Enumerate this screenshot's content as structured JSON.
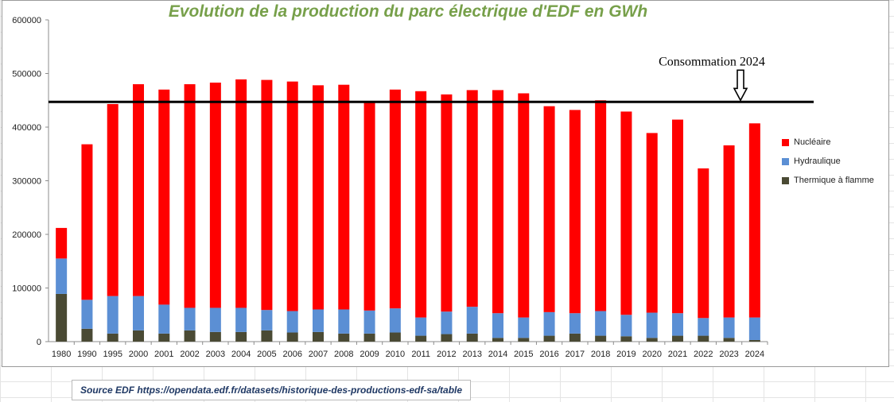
{
  "chart_data": {
    "type": "bar",
    "stacked": true,
    "title": "Evolution de la production du parc électrique d'EDF en GWh",
    "xlabel": "",
    "ylabel": "",
    "ylim": [
      0,
      600000
    ],
    "yticks": [
      "0",
      "100000",
      "200000",
      "300000",
      "400000",
      "500000",
      "600000"
    ],
    "ytick_values": [
      0,
      100000,
      200000,
      300000,
      400000,
      500000,
      600000
    ],
    "categories": [
      "1980",
      "1990",
      "1995",
      "2000",
      "2001",
      "2002",
      "2003",
      "2004",
      "2005",
      "2006",
      "2007",
      "2008",
      "2009",
      "2010",
      "2011",
      "2012",
      "2013",
      "2014",
      "2015",
      "2016",
      "2017",
      "2018",
      "2019",
      "2020",
      "2021",
      "2022",
      "2023",
      "2024"
    ],
    "series": [
      {
        "name": "Thermique à flamme",
        "color": "#4a4a34",
        "values": [
          89000,
          24000,
          15000,
          21000,
          15000,
          21000,
          18000,
          18000,
          21000,
          17000,
          18000,
          15000,
          15000,
          17000,
          11000,
          14000,
          15000,
          7000,
          7000,
          11000,
          15000,
          11000,
          10000,
          7000,
          11000,
          11000,
          7000,
          3000
        ]
      },
      {
        "name": "Hydraulique",
        "color": "#5b8fd4",
        "values": [
          66000,
          54000,
          70000,
          64000,
          54000,
          42000,
          45000,
          45000,
          38000,
          40000,
          42000,
          45000,
          43000,
          45000,
          34000,
          42000,
          50000,
          46000,
          38000,
          44000,
          38000,
          46000,
          40000,
          47000,
          42000,
          33000,
          38000,
          42000
        ]
      },
      {
        "name": "Nucléaire",
        "color": "#ff0000",
        "values": [
          57000,
          290000,
          358000,
          395000,
          401000,
          417000,
          420000,
          426000,
          429000,
          428000,
          418000,
          419000,
          390000,
          408000,
          422000,
          405000,
          404000,
          416000,
          418000,
          384000,
          379000,
          393000,
          379000,
          335000,
          361000,
          279000,
          321000,
          362000
        ]
      }
    ],
    "legend_order": [
      "Nucléaire",
      "Hydraulique",
      "Thermique à flamme"
    ],
    "legend_position": "right",
    "reference_line": {
      "label": "Consommation 2024",
      "value": 447000
    },
    "gridlines": false
  },
  "source": "Source EDF https://opendata.edf.fr/datasets/historique-des-productions-edf-sa/table",
  "colors": {
    "title": "#77a04a",
    "source": "#1f3864",
    "axis": "#8c8c8c"
  }
}
